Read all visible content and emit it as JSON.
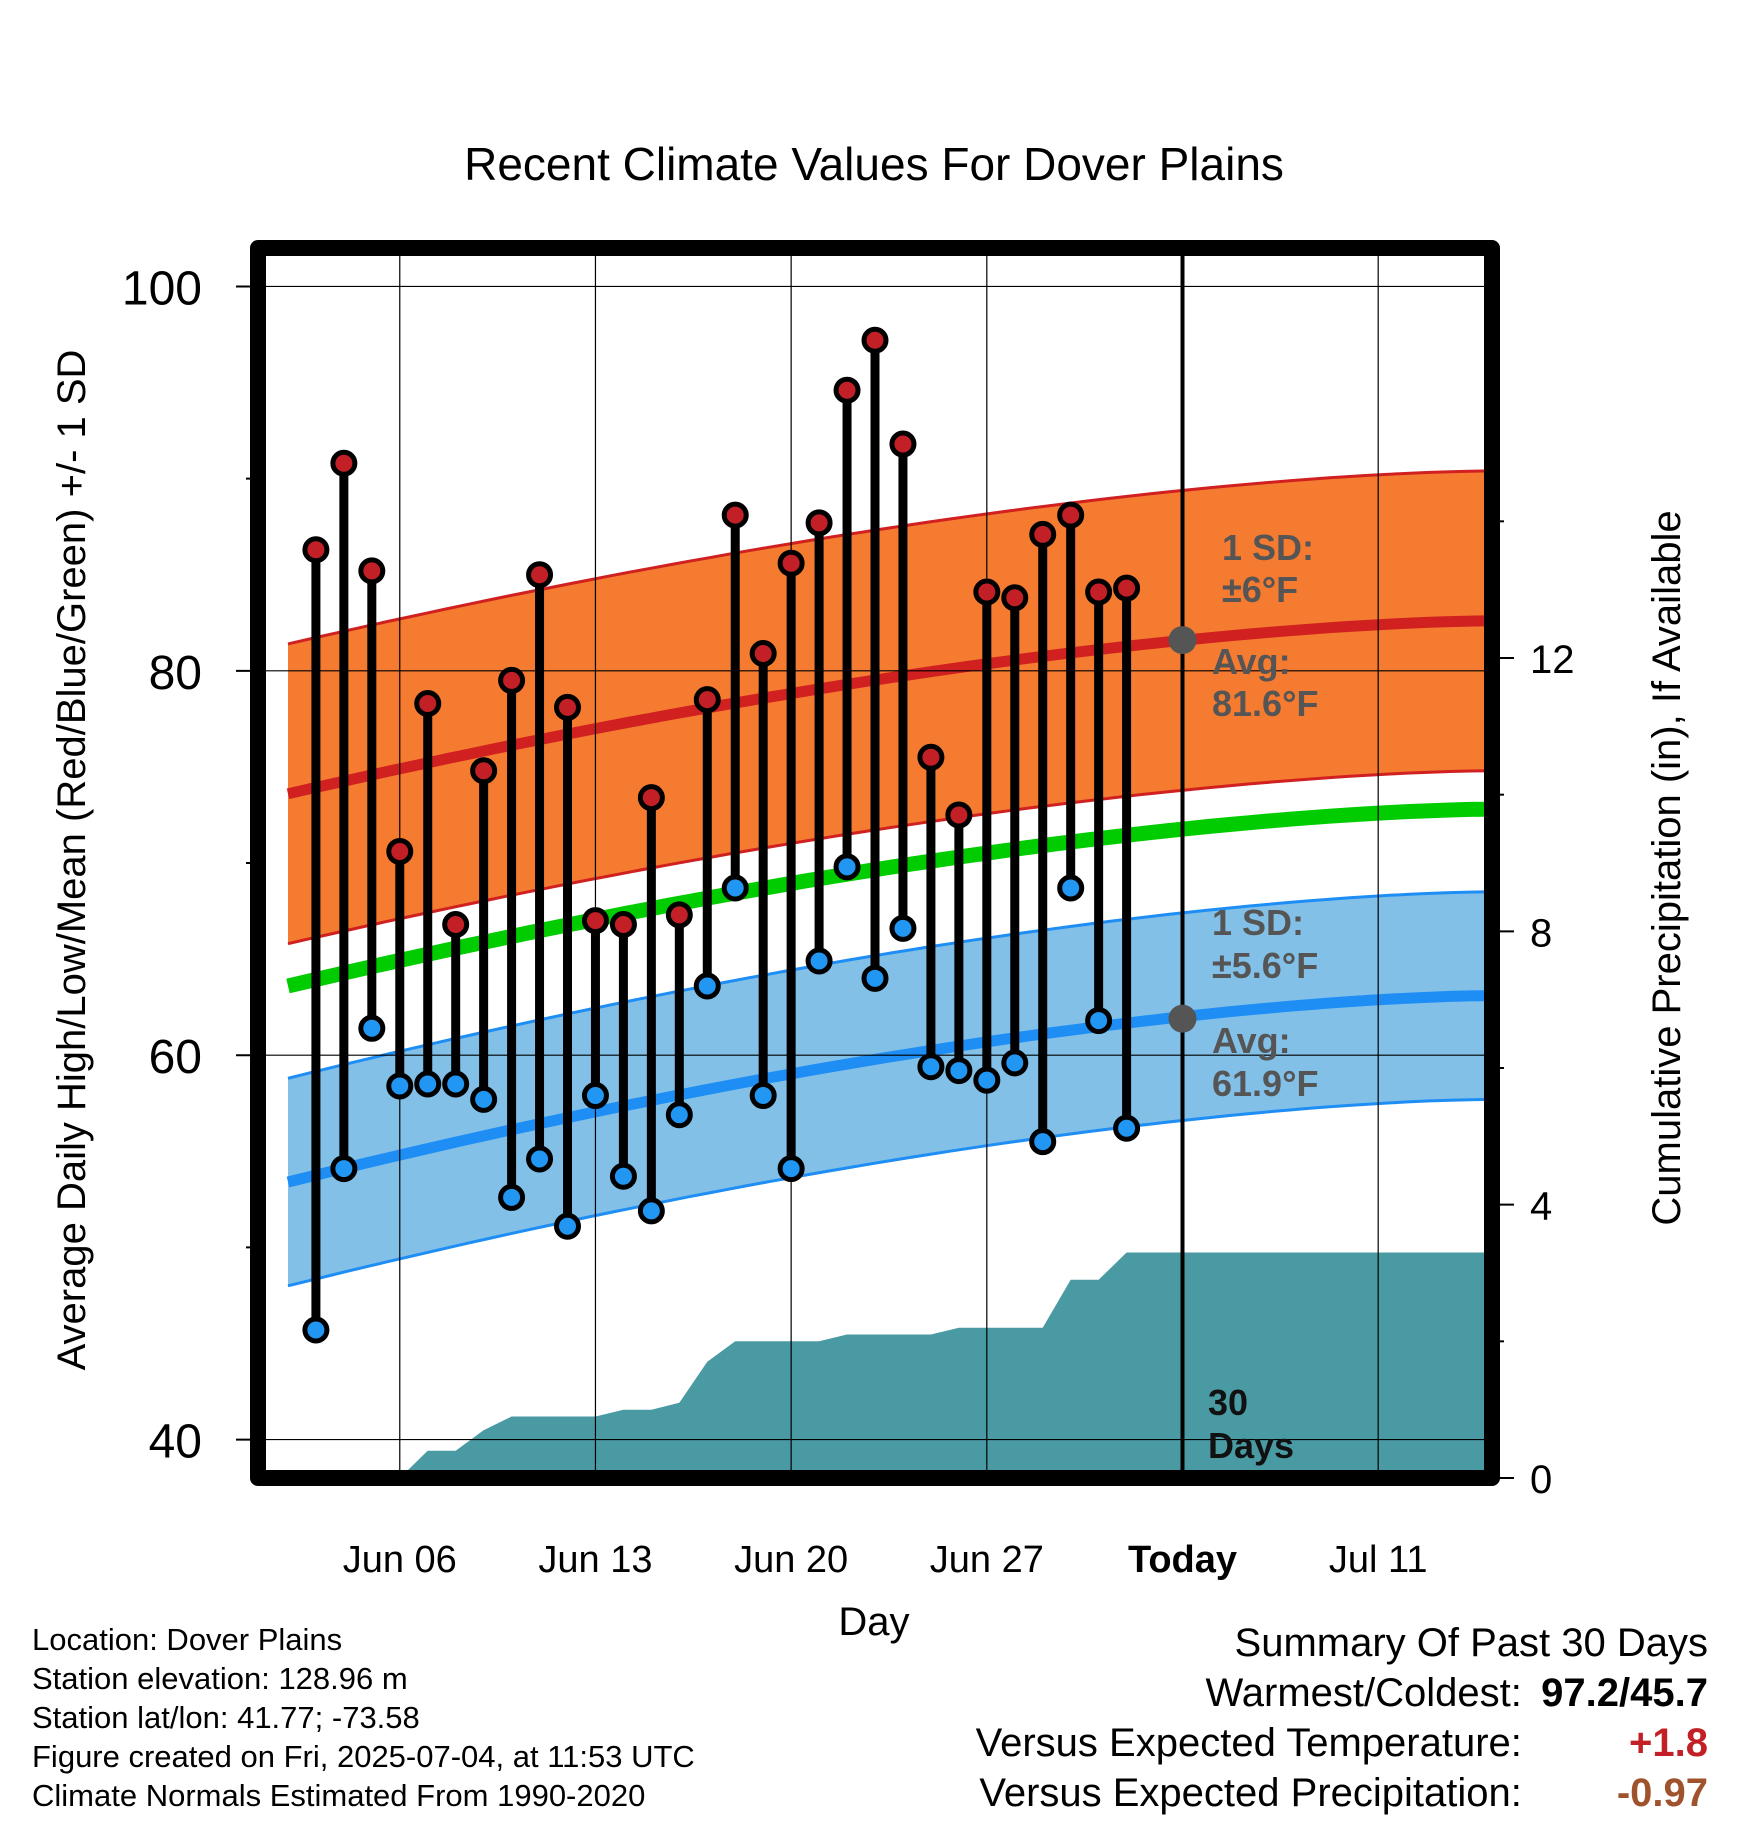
{
  "chart_data": {
    "type": "line",
    "title": "Recent Climate Values For Dover Plains",
    "xlabel": "Day",
    "ylabel_left": "Average Daily High/Low/Mean (Red/Blue/Green) +/- 1 SD",
    "ylabel_right": "Cumulative Precipitation (in), If Available",
    "ylim": [
      38,
      102
    ],
    "y2lim": [
      0,
      18
    ],
    "x_range_days": [
      1,
      45
    ],
    "x_ticks": [
      {
        "day": 6,
        "label": "Jun 06"
      },
      {
        "day": 13,
        "label": "Jun 13"
      },
      {
        "day": 20,
        "label": "Jun 20"
      },
      {
        "day": 27,
        "label": "Jun 27"
      },
      {
        "day": 34,
        "label": "Today"
      },
      {
        "day": 41,
        "label": "Jul 11"
      }
    ],
    "y_ticks": [
      40,
      60,
      80,
      100
    ],
    "y2_ticks": [
      0,
      4,
      8,
      12
    ],
    "today_day": 34,
    "today_label": [
      "30",
      "Days"
    ],
    "normals": {
      "day": [
        2,
        45
      ],
      "high_avg": [
        73.6,
        82.6
      ],
      "high_sd": 7.8,
      "low_avg": [
        53.4,
        63.1
      ],
      "low_sd": 5.4,
      "mean_avg": [
        63.6,
        72.8
      ],
      "high_ann": {
        "sd_label": [
          "1 SD:",
          "±6°F"
        ],
        "avg_label": [
          "Avg:",
          "81.6°F"
        ],
        "avg": 81.6
      },
      "low_ann": {
        "sd_label": [
          "1 SD:",
          "±5.6°F"
        ],
        "avg_label": [
          "Avg:",
          "61.9°F"
        ],
        "avg": 61.9
      }
    },
    "series": [
      {
        "name": "High",
        "day": [
          3,
          4,
          5,
          6,
          7,
          8,
          9,
          10,
          11,
          12,
          13,
          14,
          15,
          16,
          17,
          18,
          19,
          20,
          21,
          22,
          23,
          24,
          25,
          26,
          27,
          28,
          29,
          30,
          31,
          32,
          33
        ],
        "values": [
          86.3,
          90.8,
          85.2,
          70.6,
          78.3,
          66.8,
          74.8,
          79.5,
          85,
          78.1,
          67,
          66.8,
          73.4,
          67.3,
          78.5,
          88.1,
          80.9,
          85.6,
          87.7,
          94.6,
          97.2,
          91.8,
          75.5,
          72.5,
          84.1,
          83.8,
          87.1,
          88.1,
          84.1,
          84.3,
          null
        ],
        "color": "#c22026"
      },
      {
        "name": "Low",
        "day": [
          3,
          4,
          5,
          6,
          7,
          8,
          9,
          10,
          11,
          12,
          13,
          14,
          15,
          16,
          17,
          18,
          19,
          20,
          21,
          22,
          23,
          24,
          25,
          26,
          27,
          28,
          29,
          30,
          31,
          32,
          33
        ],
        "values": [
          45.7,
          54.1,
          61.4,
          58.4,
          58.5,
          58.5,
          57.7,
          52.6,
          54.6,
          51.1,
          57.9,
          53.7,
          51.9,
          56.9,
          63.6,
          68.7,
          57.9,
          54.1,
          64.9,
          69.8,
          64,
          66.6,
          59.4,
          59.2,
          58.7,
          59.6,
          55.5,
          68.7,
          61.8,
          56.2,
          null
        ],
        "color": "#2196f3"
      }
    ],
    "precip": {
      "day": [
        6,
        7,
        8,
        9,
        10,
        11,
        12,
        13,
        14,
        15,
        16,
        17,
        18,
        19,
        20,
        21,
        22,
        23,
        24,
        25,
        26,
        27,
        28,
        29,
        30,
        31,
        32,
        33,
        34,
        45
      ],
      "values": [
        0,
        0.4,
        0.4,
        0.7,
        0.9,
        0.9,
        0.9,
        0.9,
        1,
        1,
        1.1,
        1.7,
        2,
        2,
        2,
        2,
        2.1,
        2.1,
        2.1,
        2.1,
        2.2,
        2.2,
        2.2,
        2.2,
        2.9,
        2.9,
        3.3,
        3.3,
        3.3,
        3.3
      ],
      "color": "#4a9aa3"
    },
    "colors": {
      "high_band": "#f47b30",
      "low_band": "#82c0e8",
      "high_line": "#d02020",
      "low_line": "#1e8ef5",
      "mean_line": "#00cc00",
      "annotation": "#555555"
    }
  },
  "info": [
    "Location: Dover Plains",
    "Station elevation: 128.96 m",
    "Station lat/lon: 41.77; -73.58",
    "Figure created on Fri, 2025-07-04, at 11:53 UTC",
    "Climate Normals Estimated From 1990-2020"
  ],
  "summary": {
    "title": "Summary Of Past 30 Days",
    "warm_cold_label": "Warmest/Coldest:",
    "warm_cold_value": "97.2/45.7",
    "temp_label": "Versus Expected Temperature:",
    "temp_value": "+1.8",
    "temp_color": "#c22026",
    "precip_label": "Versus Expected Precipitation:",
    "precip_value": "-0.97",
    "precip_color": "#a0522d"
  }
}
